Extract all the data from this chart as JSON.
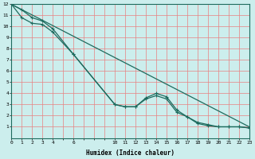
{
  "title": "",
  "xlabel": "Humidex (Indice chaleur)",
  "bg_color": "#cceeed",
  "line_color": "#1e6b5e",
  "grid_color": "#e88080",
  "xlim": [
    0,
    23
  ],
  "ylim": [
    0,
    12
  ],
  "xticks": [
    0,
    1,
    2,
    3,
    4,
    6,
    10,
    11,
    12,
    13,
    14,
    15,
    16,
    17,
    18,
    19,
    20,
    21,
    22,
    23
  ],
  "yticks": [
    1,
    2,
    3,
    4,
    5,
    6,
    7,
    8,
    9,
    10,
    11,
    12
  ],
  "series1_x": [
    0,
    23
  ],
  "series1_y": [
    12,
    1.0
  ],
  "series2_x": [
    0,
    1,
    2,
    3,
    4,
    6,
    10,
    11,
    12,
    13,
    14,
    15,
    16,
    17,
    18,
    19,
    20,
    21,
    22,
    23
  ],
  "series2_y": [
    12,
    11.5,
    10.8,
    10.5,
    9.8,
    7.5,
    3.0,
    2.8,
    2.8,
    3.6,
    4.0,
    3.7,
    2.5,
    1.9,
    1.3,
    1.1,
    1.0,
    1.0,
    1.0,
    0.9
  ],
  "series3_x": [
    0,
    1,
    2,
    3,
    4,
    6,
    10,
    11,
    12,
    13,
    14,
    15,
    16,
    17,
    18,
    19,
    20,
    21,
    22,
    23
  ],
  "series3_y": [
    12,
    10.8,
    10.3,
    10.2,
    9.5,
    7.5,
    3.0,
    2.8,
    2.8,
    3.5,
    3.8,
    3.5,
    2.3,
    1.9,
    1.4,
    1.2,
    1.0,
    1.0,
    1.0,
    0.9
  ]
}
